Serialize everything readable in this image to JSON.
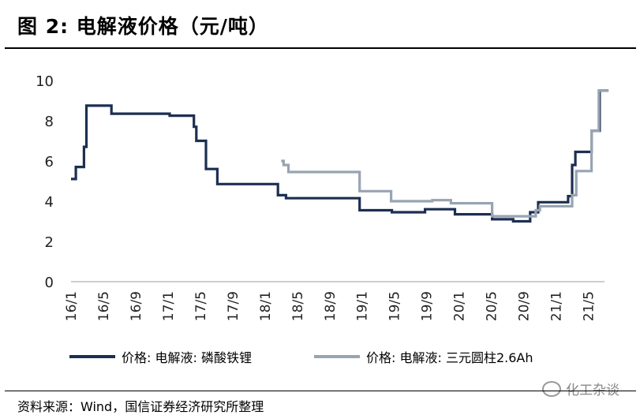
{
  "title": "图 2:  电解液价格（元/吨）",
  "source": "资料来源：Wind，国信证券经济研究所整理",
  "watermark": "化工杂谈",
  "chart_data": {
    "type": "line",
    "title": "",
    "xlabel": "",
    "ylabel": "",
    "ylim": [
      0,
      10
    ],
    "yticks": [
      0,
      2,
      4,
      6,
      8,
      10
    ],
    "xlim": [
      0,
      66
    ],
    "x_ticks": [
      {
        "label": "16/1",
        "t": 0
      },
      {
        "label": "16/5",
        "t": 4
      },
      {
        "label": "16/9",
        "t": 8
      },
      {
        "label": "17/1",
        "t": 12
      },
      {
        "label": "17/5",
        "t": 16
      },
      {
        "label": "17/9",
        "t": 20
      },
      {
        "label": "18/1",
        "t": 24
      },
      {
        "label": "18/5",
        "t": 28
      },
      {
        "label": "18/9",
        "t": 32
      },
      {
        "label": "19/1",
        "t": 36
      },
      {
        "label": "19/5",
        "t": 40
      },
      {
        "label": "19/9",
        "t": 44
      },
      {
        "label": "20/1",
        "t": 48
      },
      {
        "label": "20/5",
        "t": 52
      },
      {
        "label": "20/9",
        "t": 56
      },
      {
        "label": "21/1",
        "t": 60
      },
      {
        "label": "21/5",
        "t": 64
      }
    ],
    "grid": false,
    "legend": "bottom",
    "series": [
      {
        "name": "价格: 电解液: 磷酸铁锂",
        "color": "#1c2f52",
        "points": [
          [
            0,
            5.1
          ],
          [
            0.6,
            5.1
          ],
          [
            0.6,
            5.7
          ],
          [
            1.6,
            5.7
          ],
          [
            1.6,
            6.7
          ],
          [
            1.9,
            6.7
          ],
          [
            1.9,
            8.75
          ],
          [
            5,
            8.75
          ],
          [
            5,
            8.35
          ],
          [
            12.2,
            8.35
          ],
          [
            12.2,
            8.25
          ],
          [
            15.2,
            8.25
          ],
          [
            15.2,
            7.7
          ],
          [
            15.5,
            7.7
          ],
          [
            15.5,
            7.0
          ],
          [
            16.7,
            7.0
          ],
          [
            16.7,
            5.6
          ],
          [
            18.1,
            5.6
          ],
          [
            18.1,
            4.85
          ],
          [
            25.6,
            4.85
          ],
          [
            25.6,
            4.3
          ],
          [
            26.6,
            4.3
          ],
          [
            26.6,
            4.15
          ],
          [
            35.7,
            4.15
          ],
          [
            35.7,
            3.55
          ],
          [
            39.7,
            3.55
          ],
          [
            39.7,
            3.45
          ],
          [
            43.8,
            3.45
          ],
          [
            43.8,
            3.6
          ],
          [
            47.5,
            3.6
          ],
          [
            47.5,
            3.35
          ],
          [
            52.1,
            3.35
          ],
          [
            52.1,
            3.1
          ],
          [
            54.7,
            3.1
          ],
          [
            54.7,
            3.0
          ],
          [
            56.8,
            3.0
          ],
          [
            56.8,
            3.45
          ],
          [
            57.8,
            3.45
          ],
          [
            57.8,
            3.95
          ],
          [
            61.5,
            3.95
          ],
          [
            61.5,
            4.25
          ],
          [
            62.0,
            4.25
          ],
          [
            62.0,
            5.8
          ],
          [
            62.4,
            5.8
          ],
          [
            62.4,
            6.45
          ],
          [
            64.4,
            6.45
          ],
          [
            64.4,
            7.5
          ],
          [
            65.4,
            7.5
          ],
          [
            65.4,
            9.5
          ],
          [
            66.5,
            9.5
          ]
        ]
      },
      {
        "name": "价格: 电解液: 三元圆柱2.6Ah",
        "color": "#98a4b2",
        "points": [
          [
            26.0,
            6.0
          ],
          [
            26.3,
            6.0
          ],
          [
            26.3,
            5.8
          ],
          [
            26.9,
            5.8
          ],
          [
            26.9,
            5.45
          ],
          [
            35.7,
            5.45
          ],
          [
            35.7,
            4.5
          ],
          [
            39.6,
            4.5
          ],
          [
            39.6,
            4.0
          ],
          [
            44.7,
            4.0
          ],
          [
            44.7,
            4.05
          ],
          [
            47.0,
            4.05
          ],
          [
            47.0,
            3.9
          ],
          [
            52.1,
            3.9
          ],
          [
            52.1,
            3.25
          ],
          [
            57.5,
            3.25
          ],
          [
            57.5,
            3.55
          ],
          [
            58.0,
            3.55
          ],
          [
            58.0,
            3.75
          ],
          [
            62.0,
            3.75
          ],
          [
            62.0,
            4.3
          ],
          [
            62.5,
            4.3
          ],
          [
            62.5,
            5.5
          ],
          [
            64.4,
            5.5
          ],
          [
            64.4,
            7.5
          ],
          [
            65.3,
            7.5
          ],
          [
            65.3,
            9.5
          ],
          [
            66.5,
            9.5
          ]
        ]
      }
    ]
  }
}
